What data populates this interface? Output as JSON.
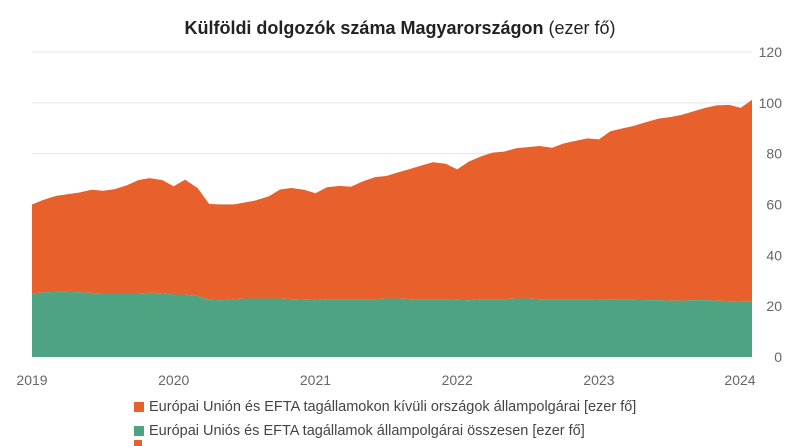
{
  "title": {
    "main": "Külföldi dolgozók száma Magyarországon",
    "unit": "(ezer fő)"
  },
  "colors": {
    "non_eu": "#e8602b",
    "eu": "#4ea383",
    "grid": "#e6e6e6",
    "axis_text": "#666666"
  },
  "legend": [
    {
      "label": "Európai Unión és EFTA tagállamokon kívüli országok állampolgárai [ezer fő]",
      "color": "#e8602b"
    },
    {
      "label": "Európai Uniós és EFTA tagállamok állampolgárai összesen [ezer fő]",
      "color": "#4ea383"
    }
  ],
  "chart_data": {
    "type": "area",
    "stacked": true,
    "x_tick_labels": [
      "2019",
      "2020",
      "2021",
      "2022",
      "2023",
      "2024"
    ],
    "y_tick_labels": [
      "0",
      "20",
      "40",
      "60",
      "80",
      "100",
      "120"
    ],
    "ylim": [
      0,
      120
    ],
    "y_axis_position": "right",
    "grid": true,
    "legend_position": "bottom",
    "x": [
      2019.0,
      2019.08,
      2019.17,
      2019.25,
      2019.33,
      2019.42,
      2019.5,
      2019.58,
      2019.67,
      2019.75,
      2019.83,
      2019.92,
      2020.0,
      2020.08,
      2020.17,
      2020.25,
      2020.33,
      2020.42,
      2020.5,
      2020.58,
      2020.67,
      2020.75,
      2020.83,
      2020.92,
      2021.0,
      2021.08,
      2021.17,
      2021.25,
      2021.33,
      2021.42,
      2021.5,
      2021.58,
      2021.67,
      2021.75,
      2021.83,
      2021.92,
      2022.0,
      2022.08,
      2022.17,
      2022.25,
      2022.33,
      2022.42,
      2022.5,
      2022.58,
      2022.67,
      2022.75,
      2022.83,
      2022.92,
      2023.0,
      2023.08,
      2023.17,
      2023.25,
      2023.33,
      2023.42,
      2023.5,
      2023.58,
      2023.67,
      2023.75,
      2023.83,
      2023.92,
      2024.0,
      2024.08
    ],
    "series": [
      {
        "name": "Európai Uniós és EFTA tagállamok állampolgárai összesen [ezer fő]",
        "values": [
          25.0,
          25.4,
          25.6,
          25.6,
          25.5,
          25.2,
          25.0,
          25.0,
          25.0,
          25.0,
          25.3,
          25.0,
          24.6,
          24.6,
          24.0,
          22.5,
          22.3,
          22.7,
          23.0,
          23.0,
          23.0,
          23.0,
          22.8,
          22.6,
          22.4,
          22.8,
          22.8,
          22.8,
          22.8,
          22.8,
          23.0,
          23.0,
          22.8,
          22.8,
          22.8,
          22.8,
          22.5,
          22.3,
          22.8,
          22.8,
          22.8,
          23.0,
          23.0,
          22.8,
          22.8,
          22.8,
          22.8,
          22.8,
          22.6,
          22.6,
          22.5,
          22.5,
          22.4,
          22.4,
          22.2,
          22.2,
          22.4,
          22.4,
          22.2,
          22.0,
          21.8,
          21.7
        ]
      },
      {
        "name": "Európai Unión és EFTA tagállamokon kívüli országok állampolgárai [ezer fő]",
        "values": [
          35.0,
          36.4,
          37.8,
          38.4,
          39.2,
          40.6,
          40.4,
          41.0,
          42.6,
          44.6,
          45.1,
          44.6,
          42.6,
          45.2,
          42.4,
          37.7,
          37.7,
          37.3,
          37.8,
          38.6,
          40.2,
          42.9,
          43.7,
          43.2,
          42.0,
          44.0,
          44.5,
          44.2,
          46.2,
          48.0,
          48.2,
          49.6,
          51.2,
          52.6,
          53.8,
          53.2,
          51.3,
          54.5,
          56.2,
          57.6,
          58.0,
          59.2,
          59.6,
          60.2,
          59.5,
          61.2,
          62.2,
          63.2,
          63.0,
          66.2,
          67.5,
          68.5,
          70.0,
          71.4,
          72.2,
          73.0,
          74.3,
          75.6,
          76.8,
          77.2,
          76.2,
          79.5
        ]
      }
    ]
  }
}
